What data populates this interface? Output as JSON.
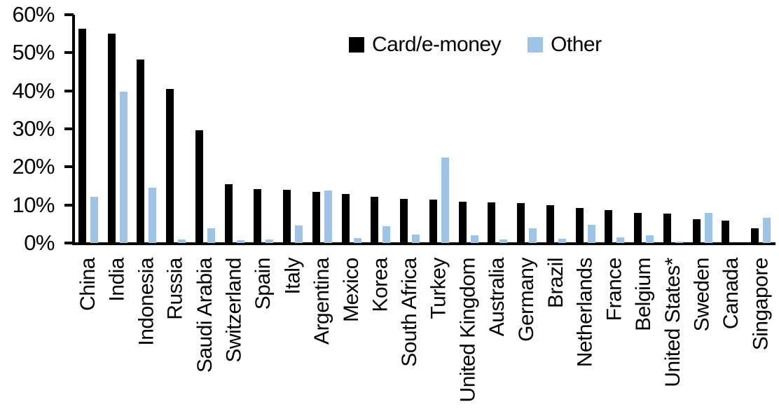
{
  "chart_data": {
    "type": "bar",
    "title": "",
    "xlabel": "",
    "ylabel": "",
    "ylim": [
      0,
      60
    ],
    "ytick_step": 10,
    "ytick_labels": [
      "0%",
      "10%",
      "20%",
      "30%",
      "40%",
      "50%",
      "60%"
    ],
    "grid": false,
    "legend_position": "top-center",
    "categories": [
      "China",
      "India",
      "Indonesia",
      "Russia",
      "Saudi Arabia",
      "Switzerland",
      "Spain",
      "Italy",
      "Argentina",
      "Mexico",
      "Korea",
      "South Africa",
      "Turkey",
      "United Kingdom",
      "Australia",
      "Germany",
      "Brazil",
      "Netherlands",
      "France",
      "Belgium",
      "United States*",
      "Sweden",
      "Canada",
      "Singapore"
    ],
    "series": [
      {
        "name": "Card/e-money",
        "color": "#000000",
        "values": [
          56.3,
          55.0,
          48.3,
          40.5,
          29.7,
          15.5,
          14.1,
          14.0,
          13.4,
          12.9,
          12.2,
          11.6,
          11.4,
          10.9,
          10.7,
          10.5,
          10.0,
          9.2,
          8.6,
          8.0,
          7.8,
          6.3,
          5.8,
          3.8
        ]
      },
      {
        "name": "Other",
        "color": "#9dc3e6",
        "values": [
          12.2,
          39.7,
          14.5,
          1.0,
          3.9,
          0.7,
          1.0,
          4.6,
          13.8,
          1.3,
          4.5,
          2.3,
          22.4,
          2.0,
          1.0,
          3.9,
          1.1,
          4.8,
          1.5,
          2.0,
          0.3,
          8.0,
          0.0,
          6.6
        ]
      }
    ]
  }
}
